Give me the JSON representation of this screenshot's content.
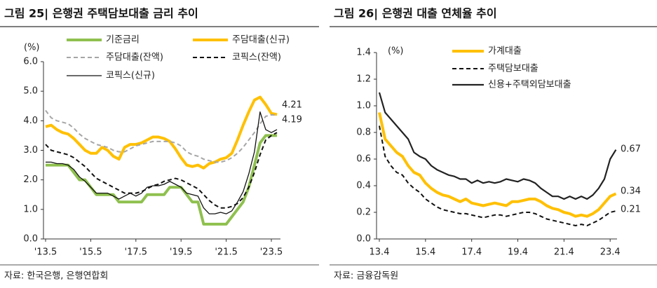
{
  "chart_data": [
    {
      "type": "line",
      "title": "그림 25| 은행권 주택담보대출 금리 추이",
      "y_label": "(%)",
      "source": "자료: 한국은행, 은행연합회",
      "categories": [
        "'13.5",
        null,
        null,
        null,
        null,
        null,
        null,
        null,
        "'15.5",
        null,
        null,
        null,
        null,
        null,
        null,
        null,
        "'17.5",
        null,
        null,
        null,
        null,
        null,
        null,
        null,
        "'19.5",
        null,
        null,
        null,
        null,
        null,
        null,
        null,
        "'21.5",
        null,
        null,
        null,
        null,
        null,
        null,
        null,
        "'23.5",
        null
      ],
      "ylim": [
        0,
        6
      ],
      "yticks": [
        {
          "value": 0,
          "label": "0.0"
        },
        {
          "value": 1,
          "label": "1.0"
        },
        {
          "value": 2,
          "label": "2.0"
        },
        {
          "value": 3,
          "label": "3.0"
        },
        {
          "value": 4,
          "label": "4.0"
        },
        {
          "value": 5,
          "label": "5.0"
        },
        {
          "value": 6,
          "label": "6.0"
        }
      ],
      "series": [
        {
          "name": "기준금리",
          "color": "#8fc04f",
          "line_style": "thick",
          "values": [
            2.5,
            2.5,
            2.5,
            2.5,
            2.5,
            2.25,
            2.0,
            2.0,
            1.75,
            1.5,
            1.5,
            1.5,
            1.5,
            1.25,
            1.25,
            1.25,
            1.25,
            1.25,
            1.5,
            1.5,
            1.5,
            1.5,
            1.75,
            1.75,
            1.75,
            1.5,
            1.25,
            1.25,
            0.5,
            0.5,
            0.5,
            0.5,
            0.5,
            0.75,
            1.0,
            1.25,
            1.75,
            2.5,
            3.25,
            3.5,
            3.5,
            3.5
          ]
        },
        {
          "name": "주담대출(신규)",
          "color": "#ffc000",
          "line_style": "thick",
          "values": [
            3.8,
            3.85,
            3.7,
            3.6,
            3.55,
            3.4,
            3.2,
            3.0,
            2.9,
            2.9,
            3.1,
            3.0,
            2.8,
            2.7,
            3.1,
            3.2,
            3.2,
            3.25,
            3.35,
            3.45,
            3.45,
            3.4,
            3.3,
            3.05,
            2.75,
            2.5,
            2.45,
            2.5,
            2.4,
            2.55,
            2.6,
            2.7,
            2.75,
            2.9,
            3.35,
            3.85,
            4.3,
            4.7,
            4.8,
            4.55,
            4.25,
            4.21
          ]
        },
        {
          "name": "주담대출(잔액)",
          "color": "#a6a6a6",
          "line_style": "dashed",
          "values": [
            4.35,
            4.1,
            4.0,
            3.95,
            3.9,
            3.75,
            3.55,
            3.4,
            3.3,
            3.2,
            3.15,
            3.1,
            3.0,
            2.95,
            2.95,
            3.05,
            3.15,
            3.2,
            3.25,
            3.3,
            3.3,
            3.3,
            3.3,
            3.25,
            3.15,
            2.95,
            2.85,
            2.8,
            2.7,
            2.65,
            2.6,
            2.6,
            2.65,
            2.75,
            2.9,
            3.1,
            3.35,
            3.6,
            3.9,
            4.15,
            4.2,
            4.19
          ]
        },
        {
          "name": "코픽스(잔액)",
          "color": "#111111",
          "line_style": "dashed",
          "values": [
            3.2,
            3.0,
            2.95,
            2.9,
            2.85,
            2.75,
            2.6,
            2.45,
            2.25,
            2.05,
            1.95,
            1.85,
            1.75,
            1.65,
            1.55,
            1.55,
            1.55,
            1.6,
            1.7,
            1.8,
            1.85,
            1.95,
            2.0,
            2.05,
            2.0,
            1.9,
            1.8,
            1.7,
            1.5,
            1.3,
            1.15,
            1.05,
            1.05,
            1.1,
            1.2,
            1.4,
            1.75,
            2.25,
            2.85,
            3.35,
            3.5,
            3.6
          ]
        },
        {
          "name": "코픽스(신규)",
          "color": "#111111",
          "line_style": "thin",
          "values": [
            2.6,
            2.6,
            2.55,
            2.55,
            2.5,
            2.35,
            2.1,
            1.95,
            1.75,
            1.55,
            1.55,
            1.55,
            1.45,
            1.35,
            1.45,
            1.55,
            1.45,
            1.55,
            1.75,
            1.8,
            1.8,
            1.85,
            1.95,
            1.85,
            1.75,
            1.55,
            1.5,
            1.45,
            1.05,
            0.85,
            0.85,
            0.9,
            0.85,
            0.95,
            1.25,
            1.6,
            2.2,
            2.95,
            4.3,
            3.7,
            3.6,
            3.7
          ]
        }
      ],
      "annotations": [
        "4.21",
        "4.19"
      ]
    },
    {
      "type": "line",
      "title": "그림 26| 은행권 대출 연체율 추이",
      "y_label": "(%)",
      "source": "자료: 금융감독원",
      "categories": [
        "13.4",
        null,
        null,
        null,
        null,
        null,
        null,
        null,
        "15.4",
        null,
        null,
        null,
        null,
        null,
        null,
        null,
        "17.4",
        null,
        null,
        null,
        null,
        null,
        null,
        null,
        "19.4",
        null,
        null,
        null,
        null,
        null,
        null,
        null,
        "21.4",
        null,
        null,
        null,
        null,
        null,
        null,
        null,
        "23.4",
        null
      ],
      "ylim": [
        0,
        1.4
      ],
      "yticks": [
        {
          "value": 0,
          "label": "0.0"
        },
        0.2,
        0.4,
        0.6,
        0.8,
        {
          "value": 1,
          "label": "1.0"
        },
        1.2,
        1.4
      ],
      "series": [
        {
          "name": "가계대출",
          "color": "#ffc000",
          "line_style": "thick",
          "values": [
            0.95,
            0.75,
            0.7,
            0.65,
            0.62,
            0.55,
            0.5,
            0.48,
            0.42,
            0.38,
            0.35,
            0.33,
            0.32,
            0.3,
            0.28,
            0.3,
            0.27,
            0.26,
            0.25,
            0.26,
            0.27,
            0.26,
            0.25,
            0.28,
            0.28,
            0.29,
            0.3,
            0.3,
            0.28,
            0.25,
            0.23,
            0.22,
            0.2,
            0.19,
            0.17,
            0.18,
            0.17,
            0.19,
            0.22,
            0.27,
            0.32,
            0.34
          ]
        },
        {
          "name": "주택담보대출",
          "color": "#111111",
          "line_style": "dashed",
          "values": [
            0.85,
            0.62,
            0.55,
            0.5,
            0.48,
            0.42,
            0.38,
            0.35,
            0.3,
            0.27,
            0.24,
            0.22,
            0.21,
            0.2,
            0.19,
            0.19,
            0.18,
            0.17,
            0.16,
            0.17,
            0.18,
            0.18,
            0.17,
            0.18,
            0.19,
            0.2,
            0.2,
            0.19,
            0.17,
            0.15,
            0.14,
            0.13,
            0.12,
            0.11,
            0.1,
            0.11,
            0.1,
            0.12,
            0.14,
            0.17,
            0.2,
            0.21
          ]
        },
        {
          "name": "신용+주택외담보대출",
          "color": "#222222",
          "line_style": "medium",
          "values": [
            1.1,
            0.95,
            0.9,
            0.85,
            0.8,
            0.75,
            0.65,
            0.62,
            0.6,
            0.55,
            0.52,
            0.5,
            0.48,
            0.47,
            0.45,
            0.45,
            0.42,
            0.44,
            0.42,
            0.43,
            0.42,
            0.43,
            0.45,
            0.44,
            0.43,
            0.45,
            0.44,
            0.42,
            0.38,
            0.35,
            0.32,
            0.32,
            0.3,
            0.32,
            0.3,
            0.32,
            0.3,
            0.33,
            0.38,
            0.45,
            0.6,
            0.67
          ]
        }
      ],
      "annotations": [
        "0.67",
        "0.34",
        "0.21"
      ]
    }
  ]
}
